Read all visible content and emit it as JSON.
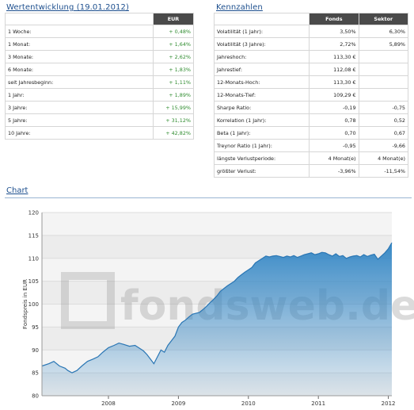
{
  "wertentwicklung": {
    "title": "Wertentwicklung (19.01.2012)",
    "header": "EUR",
    "rows": [
      {
        "label": "1 Woche:",
        "value": "+ 0,48%"
      },
      {
        "label": "1 Monat:",
        "value": "+ 1,64%"
      },
      {
        "label": "3 Monate:",
        "value": "+ 2,62%"
      },
      {
        "label": "6 Monate:",
        "value": "+ 1,83%"
      },
      {
        "label": "seit Jahresbeginn:",
        "value": "+ 1,11%"
      },
      {
        "label": "1 Jahr:",
        "value": "+ 1,89%"
      },
      {
        "label": "3 Jahre:",
        "value": "+ 15,99%"
      },
      {
        "label": "5 Jahre:",
        "value": "+ 31,12%"
      },
      {
        "label": "10 Jahre:",
        "value": "+ 42,82%"
      }
    ]
  },
  "kennzahlen": {
    "title": "Kennzahlen",
    "col_fonds": "Fonds",
    "col_sektor": "Sektor",
    "rows": [
      {
        "label": "Volatilität (1 Jahr):",
        "fonds": "3,50%",
        "sektor": "6,30%"
      },
      {
        "label": "Volatilität (3 Jahre):",
        "fonds": "2,72%",
        "sektor": "5,89%"
      },
      {
        "label": "Jahreshoch:",
        "fonds": "113,30 €",
        "sektor": ""
      },
      {
        "label": "Jahrestief:",
        "fonds": "112,08 €",
        "sektor": ""
      },
      {
        "label": "12-Monats-Hoch:",
        "fonds": "113,30 €",
        "sektor": ""
      },
      {
        "label": "12-Monats-Tief:",
        "fonds": "109,29 €",
        "sektor": ""
      },
      {
        "label": "Sharpe Ratio:",
        "fonds": "-0,19",
        "sektor": "-0,75"
      },
      {
        "label": "Korrelation (1 Jahr):",
        "fonds": "0,78",
        "sektor": "0,52"
      },
      {
        "label": "Beta (1 Jahr):",
        "fonds": "0,70",
        "sektor": "0,67"
      },
      {
        "label": "Treynor Ratio (1 Jahr):",
        "fonds": "-0,95",
        "sektor": "-9,66"
      },
      {
        "label": "längste Verlustperiode:",
        "fonds": "4 Monat(e)",
        "sektor": "4 Monat(e)"
      },
      {
        "label": "größter Verlust:",
        "fonds": "-3,96%",
        "sektor": "-11,54%"
      }
    ]
  },
  "chart_section": {
    "title": "Chart"
  },
  "chart_data": {
    "type": "area",
    "watermark": "fondsweb.de",
    "ylabel": "Fondspreis in EUR",
    "ylim": [
      80,
      120
    ],
    "yticks": [
      80,
      85,
      90,
      95,
      100,
      105,
      110,
      115,
      120
    ],
    "xlim": [
      2007.05,
      2012.05
    ],
    "xticks": [
      {
        "v": 2008,
        "label": "2008"
      },
      {
        "v": 2009,
        "label": "2009"
      },
      {
        "v": 2010,
        "label": "2010"
      },
      {
        "v": 2011,
        "label": "2011"
      },
      {
        "v": 2012,
        "label": "2012"
      }
    ],
    "fill_color": "#2f84c4",
    "line_color": "#2a76b4",
    "x": [
      2007.05,
      2007.15,
      2007.22,
      2007.3,
      2007.38,
      2007.42,
      2007.48,
      2007.55,
      2007.62,
      2007.7,
      2007.78,
      2007.85,
      2007.92,
      2008.0,
      2008.08,
      2008.15,
      2008.22,
      2008.3,
      2008.38,
      2008.45,
      2008.5,
      2008.55,
      2008.6,
      2008.65,
      2008.7,
      2008.75,
      2008.8,
      2008.85,
      2008.9,
      2008.95,
      2009.0,
      2009.05,
      2009.1,
      2009.15,
      2009.2,
      2009.25,
      2009.3,
      2009.35,
      2009.4,
      2009.45,
      2009.5,
      2009.55,
      2009.6,
      2009.65,
      2009.7,
      2009.75,
      2009.8,
      2009.85,
      2009.9,
      2009.95,
      2010.0,
      2010.05,
      2010.1,
      2010.15,
      2010.2,
      2010.25,
      2010.3,
      2010.35,
      2010.4,
      2010.45,
      2010.5,
      2010.55,
      2010.6,
      2010.65,
      2010.7,
      2010.75,
      2010.8,
      2010.85,
      2010.9,
      2010.95,
      2011.0,
      2011.05,
      2011.1,
      2011.15,
      2011.2,
      2011.25,
      2011.3,
      2011.35,
      2011.4,
      2011.45,
      2011.5,
      2011.55,
      2011.6,
      2011.65,
      2011.7,
      2011.75,
      2011.8,
      2011.85,
      2011.9,
      2011.95,
      2012.0,
      2012.05
    ],
    "y": [
      86.5,
      87.0,
      87.5,
      86.5,
      86.0,
      85.5,
      85.0,
      85.5,
      86.5,
      87.5,
      88.0,
      88.5,
      89.5,
      90.5,
      91.0,
      91.5,
      91.2,
      90.8,
      91.0,
      90.3,
      89.8,
      89.0,
      88.0,
      87.0,
      88.5,
      90.0,
      89.5,
      91.0,
      92.0,
      93.0,
      95.0,
      96.0,
      96.5,
      97.2,
      97.8,
      98.0,
      98.2,
      98.8,
      99.5,
      100.3,
      101.0,
      101.8,
      102.8,
      103.4,
      104.0,
      104.5,
      105.0,
      105.8,
      106.4,
      107.0,
      107.5,
      108.0,
      109.0,
      109.5,
      110.0,
      110.5,
      110.3,
      110.5,
      110.6,
      110.4,
      110.2,
      110.5,
      110.3,
      110.6,
      110.2,
      110.5,
      110.8,
      111.0,
      111.2,
      110.8,
      111.0,
      111.3,
      111.2,
      110.8,
      110.5,
      111.0,
      110.4,
      110.6,
      110.0,
      110.3,
      110.5,
      110.6,
      110.3,
      110.8,
      110.4,
      110.7,
      110.9,
      109.8,
      110.5,
      111.2,
      112.1,
      113.4
    ]
  }
}
